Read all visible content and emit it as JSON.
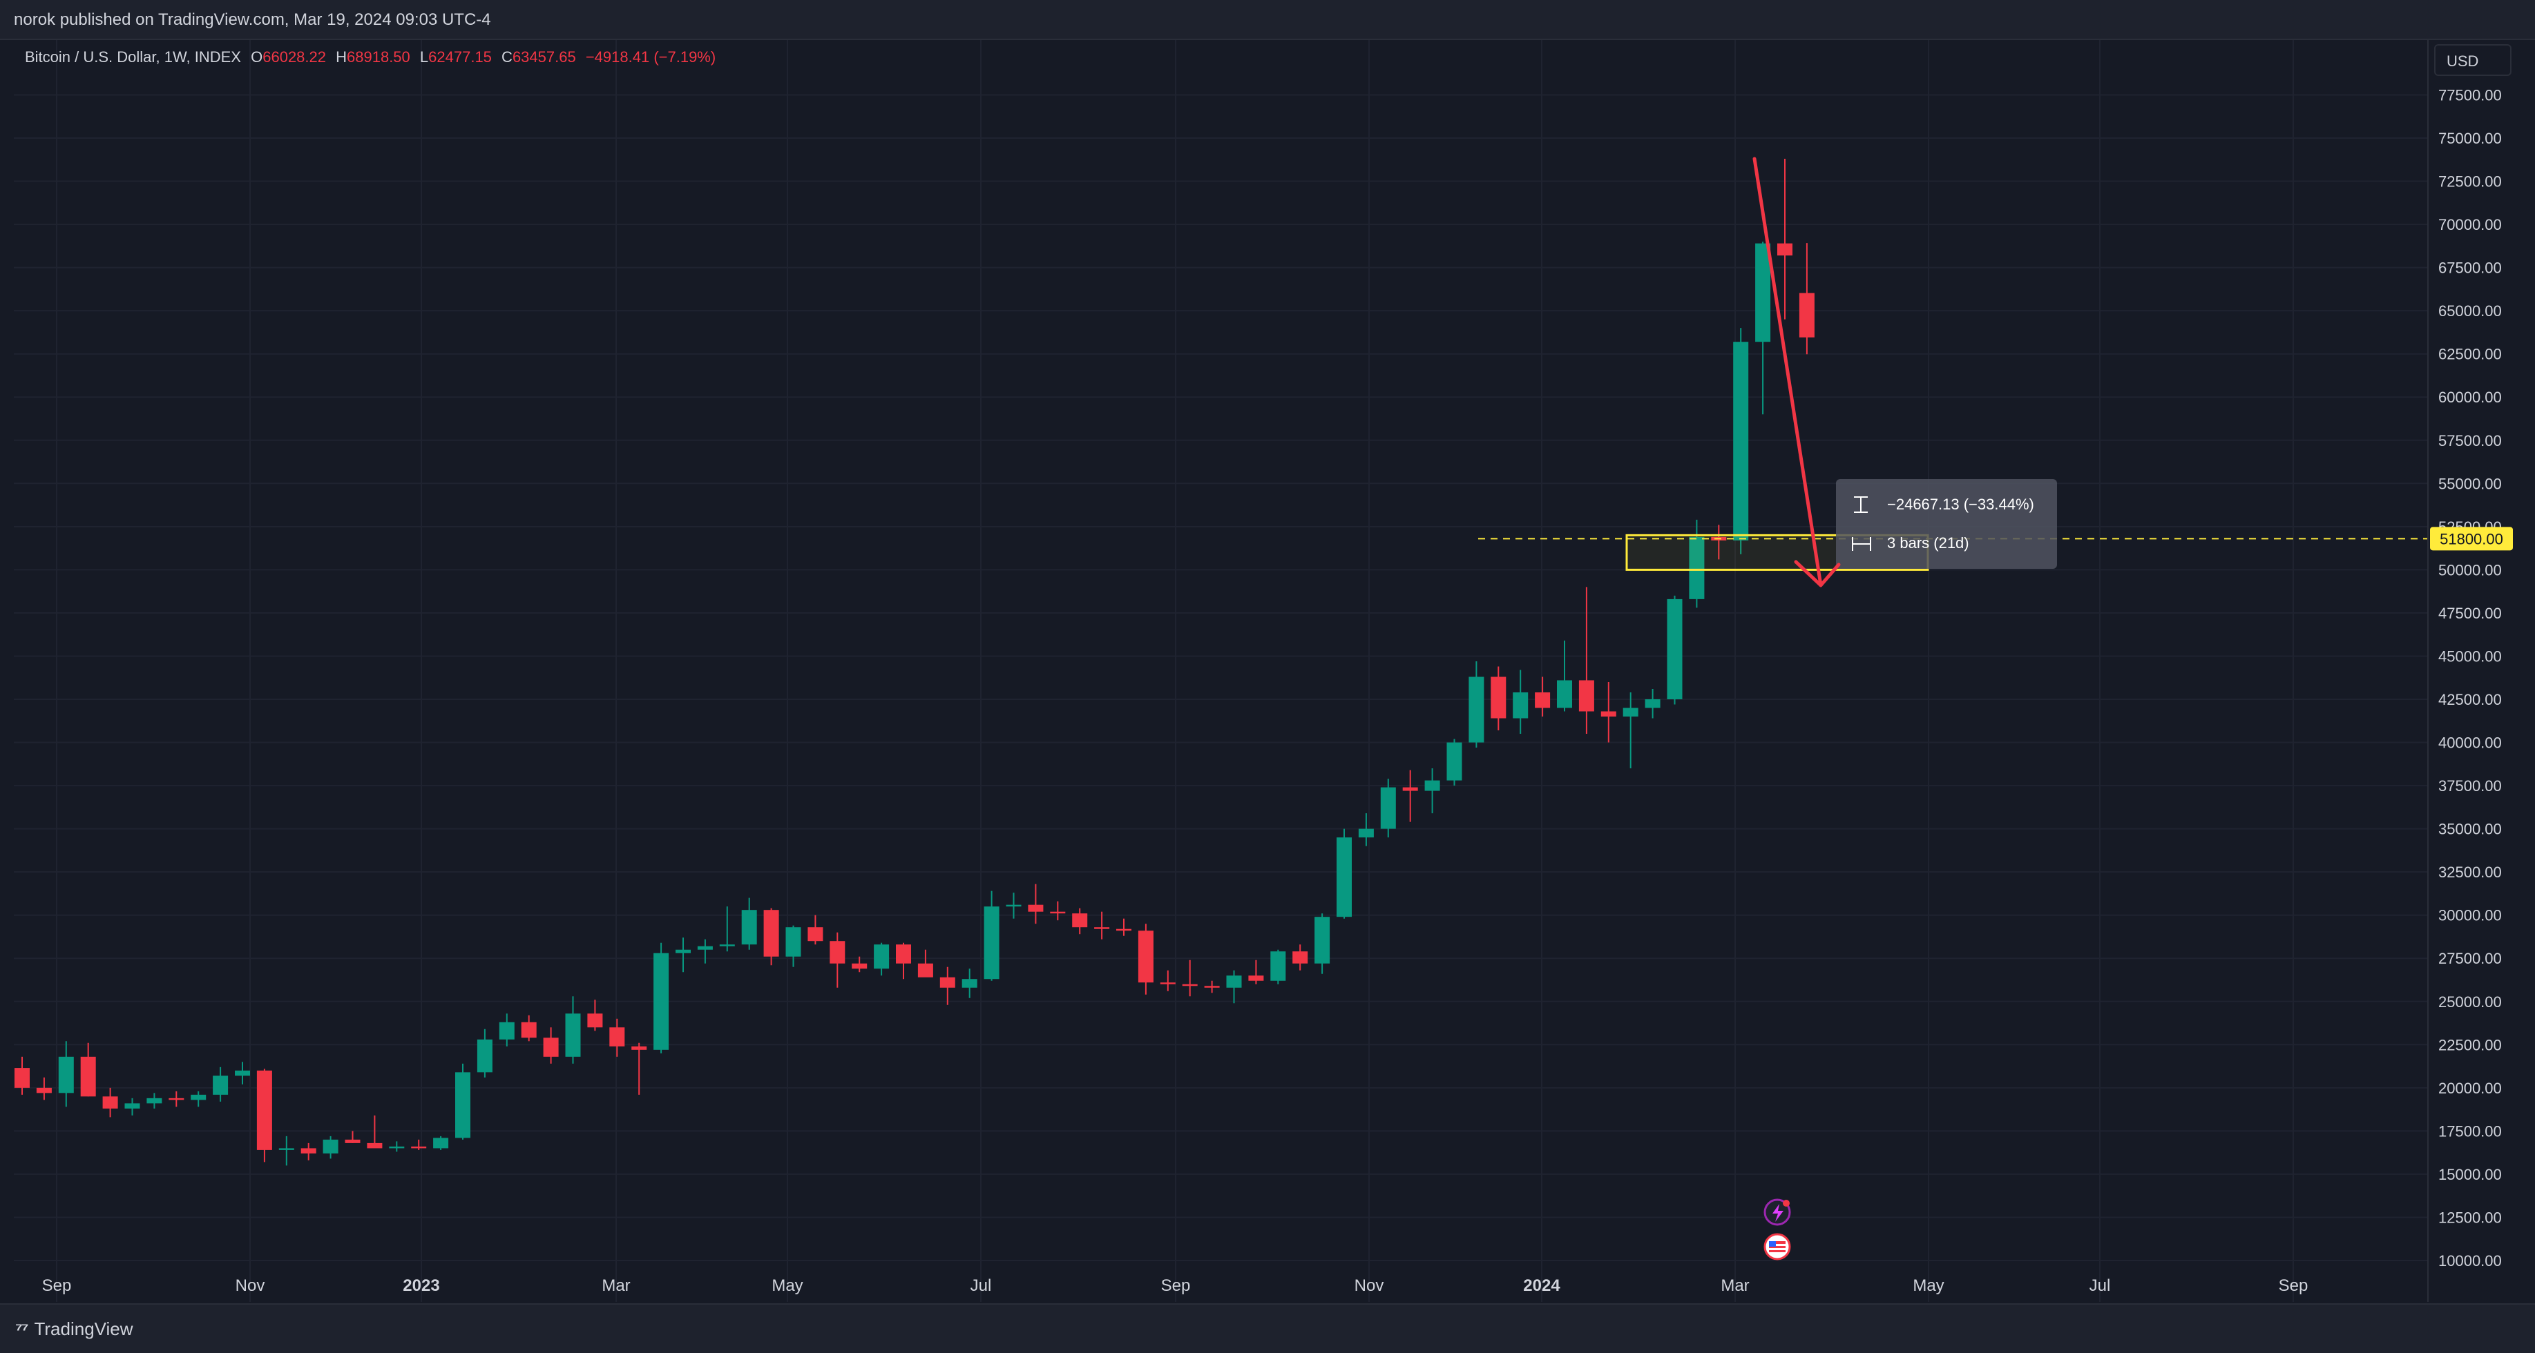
{
  "header": {
    "publisher_line": "norok published on TradingView.com, Mar 19, 2024 09:03 UTC-4"
  },
  "legend": {
    "symbol": "Bitcoin / U.S. Dollar, 1W, INDEX",
    "open_label": "O",
    "open": "66028.22",
    "high_label": "H",
    "high": "68918.50",
    "low_label": "L",
    "low": "62477.15",
    "close_label": "C",
    "close": "63457.65",
    "change": "−4918.41 (−7.19%)"
  },
  "currency_button": "USD",
  "price_axis_labels": [
    "77500.00",
    "75000.00",
    "72500.00",
    "70000.00",
    "67500.00",
    "65000.00",
    "62500.00",
    "60000.00",
    "57500.00",
    "55000.00",
    "52500.00",
    "50000.00",
    "47500.00",
    "45000.00",
    "42500.00",
    "40000.00",
    "37500.00",
    "35000.00",
    "32500.00",
    "30000.00",
    "27500.00",
    "25000.00",
    "22500.00",
    "20000.00",
    "17500.00",
    "15000.00",
    "12500.00",
    "10000.00"
  ],
  "time_axis_labels": [
    "Sep",
    "Nov",
    "2023",
    "Mar",
    "May",
    "Jul",
    "Sep",
    "Nov",
    "2024",
    "Mar",
    "May",
    "Jul",
    "Sep"
  ],
  "horizontal_line": {
    "price_label": "51800.00",
    "color": "#ffeb3b"
  },
  "measure_tooltip": {
    "price_change": "−24667.13 (−33.44%)",
    "bars": "3 bars (21d)"
  },
  "colors": {
    "up": "#089981",
    "down": "#f23645",
    "background": "#161a25",
    "grid": "#1f2330",
    "arrow": "#f23645"
  },
  "footer": {
    "brand": "TradingView"
  },
  "chart_data": {
    "type": "candlestick",
    "title": "Bitcoin / U.S. Dollar, 1W, INDEX",
    "y_range": [
      10000,
      77500
    ],
    "x_axis": "weeks, Aug 2022 – Mar 2024",
    "candles": [
      [
        21150,
        21800,
        19600,
        20000
      ],
      [
        20000,
        20600,
        19300,
        19700
      ],
      [
        19700,
        22700,
        18900,
        21800
      ],
      [
        21800,
        22600,
        19500,
        19500
      ],
      [
        19500,
        20000,
        18300,
        18800
      ],
      [
        18800,
        19400,
        18400,
        19100
      ],
      [
        19100,
        19700,
        18800,
        19400
      ],
      [
        19400,
        19800,
        18900,
        19300
      ],
      [
        19300,
        19800,
        18900,
        19600
      ],
      [
        19600,
        21200,
        19200,
        20700
      ],
      [
        20700,
        21500,
        20200,
        21000
      ],
      [
        21000,
        21100,
        15700,
        16400
      ],
      [
        16400,
        17200,
        15500,
        16500
      ],
      [
        16500,
        16800,
        15800,
        16200
      ],
      [
        16200,
        17200,
        15900,
        17000
      ],
      [
        17000,
        17500,
        16800,
        16800
      ],
      [
        16800,
        18400,
        16700,
        16500
      ],
      [
        16500,
        16900,
        16300,
        16600
      ],
      [
        16600,
        17000,
        16400,
        16500
      ],
      [
        16500,
        17200,
        16400,
        17100
      ],
      [
        17100,
        21400,
        17000,
        20900
      ],
      [
        20900,
        23400,
        20600,
        22800
      ],
      [
        22800,
        24300,
        22400,
        23800
      ],
      [
        23800,
        24200,
        22700,
        22900
      ],
      [
        22900,
        23500,
        21400,
        21800
      ],
      [
        21800,
        25300,
        21400,
        24300
      ],
      [
        24300,
        25100,
        23300,
        23500
      ],
      [
        23500,
        24000,
        21800,
        22400
      ],
      [
        22400,
        22600,
        19600,
        22200
      ],
      [
        22200,
        28400,
        22000,
        27800
      ],
      [
        27800,
        28700,
        26700,
        28000
      ],
      [
        28000,
        28600,
        27200,
        28200
      ],
      [
        28200,
        30500,
        27900,
        28300
      ],
      [
        28300,
        31000,
        28000,
        30300
      ],
      [
        30300,
        30400,
        27100,
        27600
      ],
      [
        27600,
        29400,
        27000,
        29300
      ],
      [
        29300,
        30000,
        28300,
        28500
      ],
      [
        28500,
        29000,
        25800,
        27200
      ],
      [
        27200,
        27600,
        26700,
        26900
      ],
      [
        26900,
        28400,
        26500,
        28300
      ],
      [
        28300,
        28400,
        26300,
        27200
      ],
      [
        27200,
        28000,
        26500,
        26400
      ],
      [
        26400,
        27000,
        24800,
        25800
      ],
      [
        25800,
        26900,
        25200,
        26300
      ],
      [
        26300,
        31400,
        26200,
        30500
      ],
      [
        30500,
        31300,
        29800,
        30600
      ],
      [
        30600,
        31800,
        29500,
        30200
      ],
      [
        30200,
        30800,
        29700,
        30100
      ],
      [
        30100,
        30400,
        28900,
        29300
      ],
      [
        29300,
        30200,
        28600,
        29200
      ],
      [
        29200,
        29800,
        28800,
        29100
      ],
      [
        29100,
        29500,
        25400,
        26100
      ],
      [
        26100,
        26800,
        25600,
        26000
      ],
      [
        26000,
        27400,
        25300,
        25900
      ],
      [
        25900,
        26200,
        25500,
        25800
      ],
      [
        25800,
        26800,
        24900,
        26500
      ],
      [
        26500,
        27400,
        26000,
        26200
      ],
      [
        26200,
        28000,
        26000,
        27900
      ],
      [
        27900,
        28300,
        26800,
        27200
      ],
      [
        27200,
        30100,
        26600,
        29900
      ],
      [
        29900,
        35000,
        29800,
        34500
      ],
      [
        34500,
        35900,
        34000,
        35000
      ],
      [
        35000,
        37900,
        34500,
        37400
      ],
      [
        37400,
        38400,
        35400,
        37200
      ],
      [
        37200,
        38500,
        35900,
        37800
      ],
      [
        37800,
        40200,
        37500,
        40000
      ],
      [
        40000,
        44700,
        39700,
        43800
      ],
      [
        43800,
        44400,
        40700,
        41400
      ],
      [
        41400,
        44200,
        40500,
        42900
      ],
      [
        42900,
        43800,
        41500,
        42000
      ],
      [
        42000,
        45900,
        41800,
        43600
      ],
      [
        43600,
        49000,
        40500,
        41800
      ],
      [
        41800,
        43500,
        40000,
        41500
      ],
      [
        41500,
        42900,
        38500,
        42000
      ],
      [
        42000,
        43100,
        41400,
        42500
      ],
      [
        42500,
        48500,
        42200,
        48300
      ],
      [
        48300,
        52900,
        47800,
        51900
      ],
      [
        51900,
        52600,
        50600,
        51700
      ],
      [
        51700,
        64000,
        50900,
        63200
      ],
      [
        63200,
        69000,
        59000,
        68900
      ],
      [
        68900,
        73800,
        64500,
        68200
      ],
      [
        66028.22,
        68918.5,
        62477.15,
        63457.65
      ]
    ],
    "drawings": {
      "horizontal_line_price": 51800,
      "rectangle_price_range": [
        50000,
        52000
      ],
      "arrow_from_price": 73800,
      "arrow_to_price": 49100,
      "measure_change": "−24667.13 (−33.44%)",
      "measure_bars": "3 bars (21d)"
    }
  }
}
